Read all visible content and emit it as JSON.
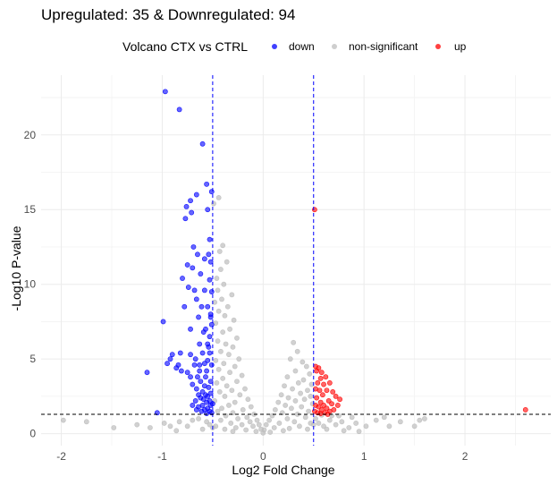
{
  "chart_data": {
    "type": "scatter",
    "title": "Upregulated: 35 & Downregulated: 94",
    "xlabel": "Log2 Fold Change",
    "ylabel": "-Log10 P-value",
    "xlim": [
      -2.2,
      2.85
    ],
    "ylim": [
      -0.8,
      24
    ],
    "x_ticks": [
      -2,
      -1,
      0,
      1,
      2
    ],
    "y_ticks": [
      0,
      5,
      10,
      15,
      20
    ],
    "grid": true,
    "legend": {
      "title": "Volcano CTX vs CTRL",
      "position": "top",
      "entries": [
        {
          "label": "down",
          "color": "#0000ff"
        },
        {
          "label": "non-significant",
          "color": "#bebebe"
        },
        {
          "label": "up",
          "color": "#ff0000"
        }
      ]
    },
    "thresholds": {
      "x": [
        -0.5,
        0.5
      ],
      "y": 1.3,
      "x_color": "#0000ff",
      "y_color": "#000000"
    },
    "series": [
      {
        "name": "down",
        "color": "#0000ff",
        "points": [
          [
            -0.97,
            22.9
          ],
          [
            -0.83,
            21.7
          ],
          [
            -0.6,
            19.4
          ],
          [
            -0.56,
            16.7
          ],
          [
            -0.51,
            16.2
          ],
          [
            -0.66,
            16.0
          ],
          [
            -0.72,
            15.6
          ],
          [
            -0.76,
            15.2
          ],
          [
            -0.71,
            14.8
          ],
          [
            -0.77,
            14.4
          ],
          [
            -0.55,
            15.0
          ],
          [
            -0.53,
            13.0
          ],
          [
            -0.65,
            12.0
          ],
          [
            -0.54,
            12.0
          ],
          [
            -0.75,
            11.3
          ],
          [
            -0.7,
            11.1
          ],
          [
            -0.52,
            11.5
          ],
          [
            -0.62,
            10.7
          ],
          [
            -0.8,
            10.4
          ],
          [
            -0.53,
            10.3
          ],
          [
            -0.68,
            9.6
          ],
          [
            -0.58,
            9.6
          ],
          [
            -0.51,
            9.5
          ],
          [
            -0.78,
            8.5
          ],
          [
            -0.61,
            8.5
          ],
          [
            -0.55,
            8.5
          ],
          [
            -0.64,
            7.8
          ],
          [
            -0.52,
            7.8
          ],
          [
            -0.99,
            7.5
          ],
          [
            -0.72,
            7.0
          ],
          [
            -0.57,
            7.0
          ],
          [
            -0.51,
            7.3
          ],
          [
            -0.53,
            6.5
          ],
          [
            -0.63,
            6.0
          ],
          [
            -0.55,
            6.0
          ],
          [
            -0.82,
            5.4
          ],
          [
            -0.6,
            5.4
          ],
          [
            -0.53,
            5.4
          ],
          [
            -0.72,
            5.3
          ],
          [
            -0.92,
            5.0
          ],
          [
            -0.9,
            5.3
          ],
          [
            -0.67,
            5.0
          ],
          [
            -0.55,
            4.9
          ],
          [
            -0.63,
            4.6
          ],
          [
            -0.68,
            4.6
          ],
          [
            -0.58,
            4.7
          ],
          [
            -0.51,
            4.6
          ],
          [
            -0.95,
            4.7
          ],
          [
            -0.84,
            4.6
          ],
          [
            -0.86,
            4.4
          ],
          [
            -0.81,
            4.2
          ],
          [
            -1.15,
            4.1
          ],
          [
            -0.75,
            4.1
          ],
          [
            -0.72,
            3.8
          ],
          [
            -0.65,
            3.8
          ],
          [
            -0.56,
            4.2
          ],
          [
            -0.52,
            3.5
          ],
          [
            -0.62,
            3.5
          ],
          [
            -0.7,
            3.3
          ],
          [
            -0.58,
            3.2
          ],
          [
            -0.54,
            3.1
          ],
          [
            -0.66,
            3.0
          ],
          [
            -0.6,
            2.8
          ],
          [
            -0.64,
            2.6
          ],
          [
            -0.57,
            2.6
          ],
          [
            -0.52,
            2.7
          ],
          [
            -0.55,
            2.5
          ],
          [
            -0.62,
            2.4
          ],
          [
            -0.59,
            2.3
          ],
          [
            -0.53,
            2.2
          ],
          [
            -0.67,
            2.2
          ],
          [
            -0.56,
            2.1
          ],
          [
            -0.6,
            1.9
          ],
          [
            -0.52,
            1.9
          ],
          [
            -0.64,
            1.8
          ],
          [
            -0.55,
            1.7
          ],
          [
            -0.58,
            1.6
          ],
          [
            -0.61,
            1.5
          ],
          [
            -0.53,
            1.5
          ],
          [
            -0.51,
            1.4
          ],
          [
            -0.56,
            1.35
          ],
          [
            -1.05,
            1.4
          ],
          [
            -0.66,
            1.6
          ],
          [
            -0.7,
            1.9
          ],
          [
            -0.57,
            3.8
          ],
          [
            -0.63,
            4.2
          ],
          [
            -0.54,
            5.8
          ],
          [
            -0.59,
            6.8
          ],
          [
            -0.52,
            8.0
          ],
          [
            -0.66,
            9.0
          ],
          [
            -0.74,
            9.8
          ],
          [
            -0.58,
            11.7
          ],
          [
            -0.69,
            12.5
          ],
          [
            -0.5,
            2.0
          ]
        ]
      },
      {
        "name": "non-significant",
        "color": "#bebebe",
        "points": [
          [
            -0.44,
            15.8
          ],
          [
            -0.49,
            15.4
          ],
          [
            -0.4,
            12.6
          ],
          [
            -0.43,
            12.2
          ],
          [
            -0.36,
            11.5
          ],
          [
            -0.42,
            11.0
          ],
          [
            -0.46,
            10.4
          ],
          [
            -0.39,
            10.0
          ],
          [
            -0.45,
            9.6
          ],
          [
            -0.31,
            9.3
          ],
          [
            -0.41,
            9.0
          ],
          [
            -0.48,
            8.8
          ],
          [
            -0.35,
            8.5
          ],
          [
            -0.44,
            8.2
          ],
          [
            -0.38,
            7.9
          ],
          [
            -0.29,
            7.6
          ],
          [
            -0.47,
            7.4
          ],
          [
            -0.33,
            7.0
          ],
          [
            -0.4,
            6.8
          ],
          [
            -0.26,
            6.4
          ],
          [
            -0.45,
            6.2
          ],
          [
            -0.37,
            6.0
          ],
          [
            -0.3,
            5.8
          ],
          [
            -0.42,
            5.5
          ],
          [
            -0.34,
            5.3
          ],
          [
            -0.24,
            5.0
          ],
          [
            -0.47,
            4.9
          ],
          [
            -0.39,
            4.7
          ],
          [
            -0.28,
            4.5
          ],
          [
            -0.44,
            4.3
          ],
          [
            -0.33,
            4.1
          ],
          [
            -0.21,
            3.9
          ],
          [
            -0.4,
            3.7
          ],
          [
            -0.26,
            3.5
          ],
          [
            -0.46,
            3.4
          ],
          [
            -0.36,
            3.2
          ],
          [
            -0.18,
            3.0
          ],
          [
            -0.31,
            2.9
          ],
          [
            -0.43,
            2.8
          ],
          [
            -0.23,
            2.6
          ],
          [
            -0.38,
            2.5
          ],
          [
            -0.15,
            2.3
          ],
          [
            -0.48,
            2.2
          ],
          [
            -0.28,
            2.1
          ],
          [
            -0.34,
            1.9
          ],
          [
            -0.12,
            1.8
          ],
          [
            -0.41,
            1.7
          ],
          [
            -0.2,
            1.6
          ],
          [
            -0.45,
            1.5
          ],
          [
            -0.3,
            1.4
          ],
          [
            -0.09,
            1.3
          ],
          [
            -0.37,
            1.2
          ],
          [
            -0.16,
            1.1
          ],
          [
            -0.25,
            1.0
          ],
          [
            -0.06,
            0.9
          ],
          [
            -0.42,
            0.9
          ],
          [
            -0.13,
            0.8
          ],
          [
            -0.32,
            0.7
          ],
          [
            -0.04,
            0.6
          ],
          [
            -0.21,
            0.6
          ],
          [
            -0.47,
            0.5
          ],
          [
            -0.1,
            0.5
          ],
          [
            -0.27,
            0.4
          ],
          [
            -0.02,
            0.3
          ],
          [
            -0.38,
            0.3
          ],
          [
            -0.17,
            0.25
          ],
          [
            -0.07,
            0.15
          ],
          [
            -0.3,
            0.15
          ],
          [
            0.0,
            0.05
          ],
          [
            -0.5,
            0.4
          ],
          [
            -0.53,
            0.6
          ],
          [
            -0.56,
            0.8
          ],
          [
            -0.64,
            1.0
          ],
          [
            -0.7,
            0.9
          ],
          [
            -0.75,
            0.5
          ],
          [
            -0.83,
            0.8
          ],
          [
            -0.92,
            0.5
          ],
          [
            -0.98,
            0.7
          ],
          [
            -1.12,
            0.4
          ],
          [
            -1.25,
            0.6
          ],
          [
            -1.48,
            0.4
          ],
          [
            -1.75,
            0.8
          ],
          [
            -1.98,
            0.9
          ],
          [
            -0.6,
            0.3
          ],
          [
            -0.86,
            0.2
          ],
          [
            0.3,
            6.1
          ],
          [
            0.34,
            5.5
          ],
          [
            0.27,
            5.0
          ],
          [
            0.39,
            4.8
          ],
          [
            0.43,
            4.5
          ],
          [
            0.32,
            4.2
          ],
          [
            0.46,
            4.0
          ],
          [
            0.24,
            3.8
          ],
          [
            0.4,
            3.6
          ],
          [
            0.35,
            3.4
          ],
          [
            0.48,
            3.3
          ],
          [
            0.21,
            3.2
          ],
          [
            0.29,
            3.0
          ],
          [
            0.44,
            2.9
          ],
          [
            0.37,
            2.7
          ],
          [
            0.18,
            2.6
          ],
          [
            0.47,
            2.5
          ],
          [
            0.25,
            2.4
          ],
          [
            0.41,
            2.3
          ],
          [
            0.32,
            2.2
          ],
          [
            0.15,
            2.1
          ],
          [
            0.49,
            2.0
          ],
          [
            0.22,
            1.9
          ],
          [
            0.38,
            1.8
          ],
          [
            0.28,
            1.7
          ],
          [
            0.12,
            1.6
          ],
          [
            0.45,
            1.5
          ],
          [
            0.19,
            1.4
          ],
          [
            0.34,
            1.3
          ],
          [
            0.09,
            1.2
          ],
          [
            0.42,
            1.1
          ],
          [
            0.24,
            1.0
          ],
          [
            0.06,
            0.9
          ],
          [
            0.31,
            0.8
          ],
          [
            0.16,
            0.7
          ],
          [
            0.47,
            0.7
          ],
          [
            0.03,
            0.6
          ],
          [
            0.36,
            0.5
          ],
          [
            0.11,
            0.4
          ],
          [
            0.26,
            0.35
          ],
          [
            0.01,
            0.25
          ],
          [
            0.2,
            0.2
          ],
          [
            0.44,
            0.3
          ],
          [
            0.07,
            0.1
          ],
          [
            0.5,
            0.6
          ],
          [
            0.55,
            0.7
          ],
          [
            0.6,
            0.5
          ],
          [
            0.66,
            0.9
          ],
          [
            0.72,
            0.6
          ],
          [
            0.78,
            0.8
          ],
          [
            0.85,
            0.4
          ],
          [
            0.92,
            0.7
          ],
          [
            1.02,
            0.5
          ],
          [
            1.12,
            0.9
          ],
          [
            1.25,
            0.5
          ],
          [
            1.36,
            0.8
          ],
          [
            1.5,
            0.5
          ],
          [
            1.55,
            0.9
          ],
          [
            1.6,
            1.0
          ],
          [
            0.63,
            0.3
          ],
          [
            0.8,
            0.2
          ],
          [
            0.95,
            0.15
          ],
          [
            0.68,
            1.2
          ],
          [
            0.88,
            1.1
          ],
          [
            1.2,
            1.1
          ],
          [
            0.52,
            1.0
          ],
          [
            0.58,
            1.25
          ],
          [
            0.75,
            1.2
          ]
        ]
      },
      {
        "name": "up",
        "color": "#ff0000",
        "points": [
          [
            0.51,
            15.0
          ],
          [
            0.52,
            4.5
          ],
          [
            0.55,
            4.4
          ],
          [
            0.53,
            4.2
          ],
          [
            0.58,
            4.1
          ],
          [
            0.57,
            3.7
          ],
          [
            0.62,
            3.8
          ],
          [
            0.54,
            3.4
          ],
          [
            0.6,
            3.3
          ],
          [
            0.66,
            3.4
          ],
          [
            0.52,
            3.0
          ],
          [
            0.56,
            2.9
          ],
          [
            0.63,
            2.9
          ],
          [
            0.69,
            2.8
          ],
          [
            0.59,
            2.6
          ],
          [
            0.72,
            2.5
          ],
          [
            0.53,
            2.4
          ],
          [
            0.65,
            2.2
          ],
          [
            0.57,
            2.1
          ],
          [
            0.68,
            2.0
          ],
          [
            0.6,
            1.9
          ],
          [
            0.52,
            1.9
          ],
          [
            0.74,
            1.9
          ],
          [
            0.55,
            1.8
          ],
          [
            0.63,
            1.7
          ],
          [
            0.58,
            1.6
          ],
          [
            0.7,
            1.6
          ],
          [
            0.51,
            1.5
          ],
          [
            0.54,
            1.4
          ],
          [
            0.61,
            1.4
          ],
          [
            0.66,
            1.5
          ],
          [
            0.57,
            1.35
          ],
          [
            0.64,
            1.3
          ],
          [
            2.6,
            1.6
          ],
          [
            0.76,
            2.3
          ]
        ]
      }
    ]
  }
}
